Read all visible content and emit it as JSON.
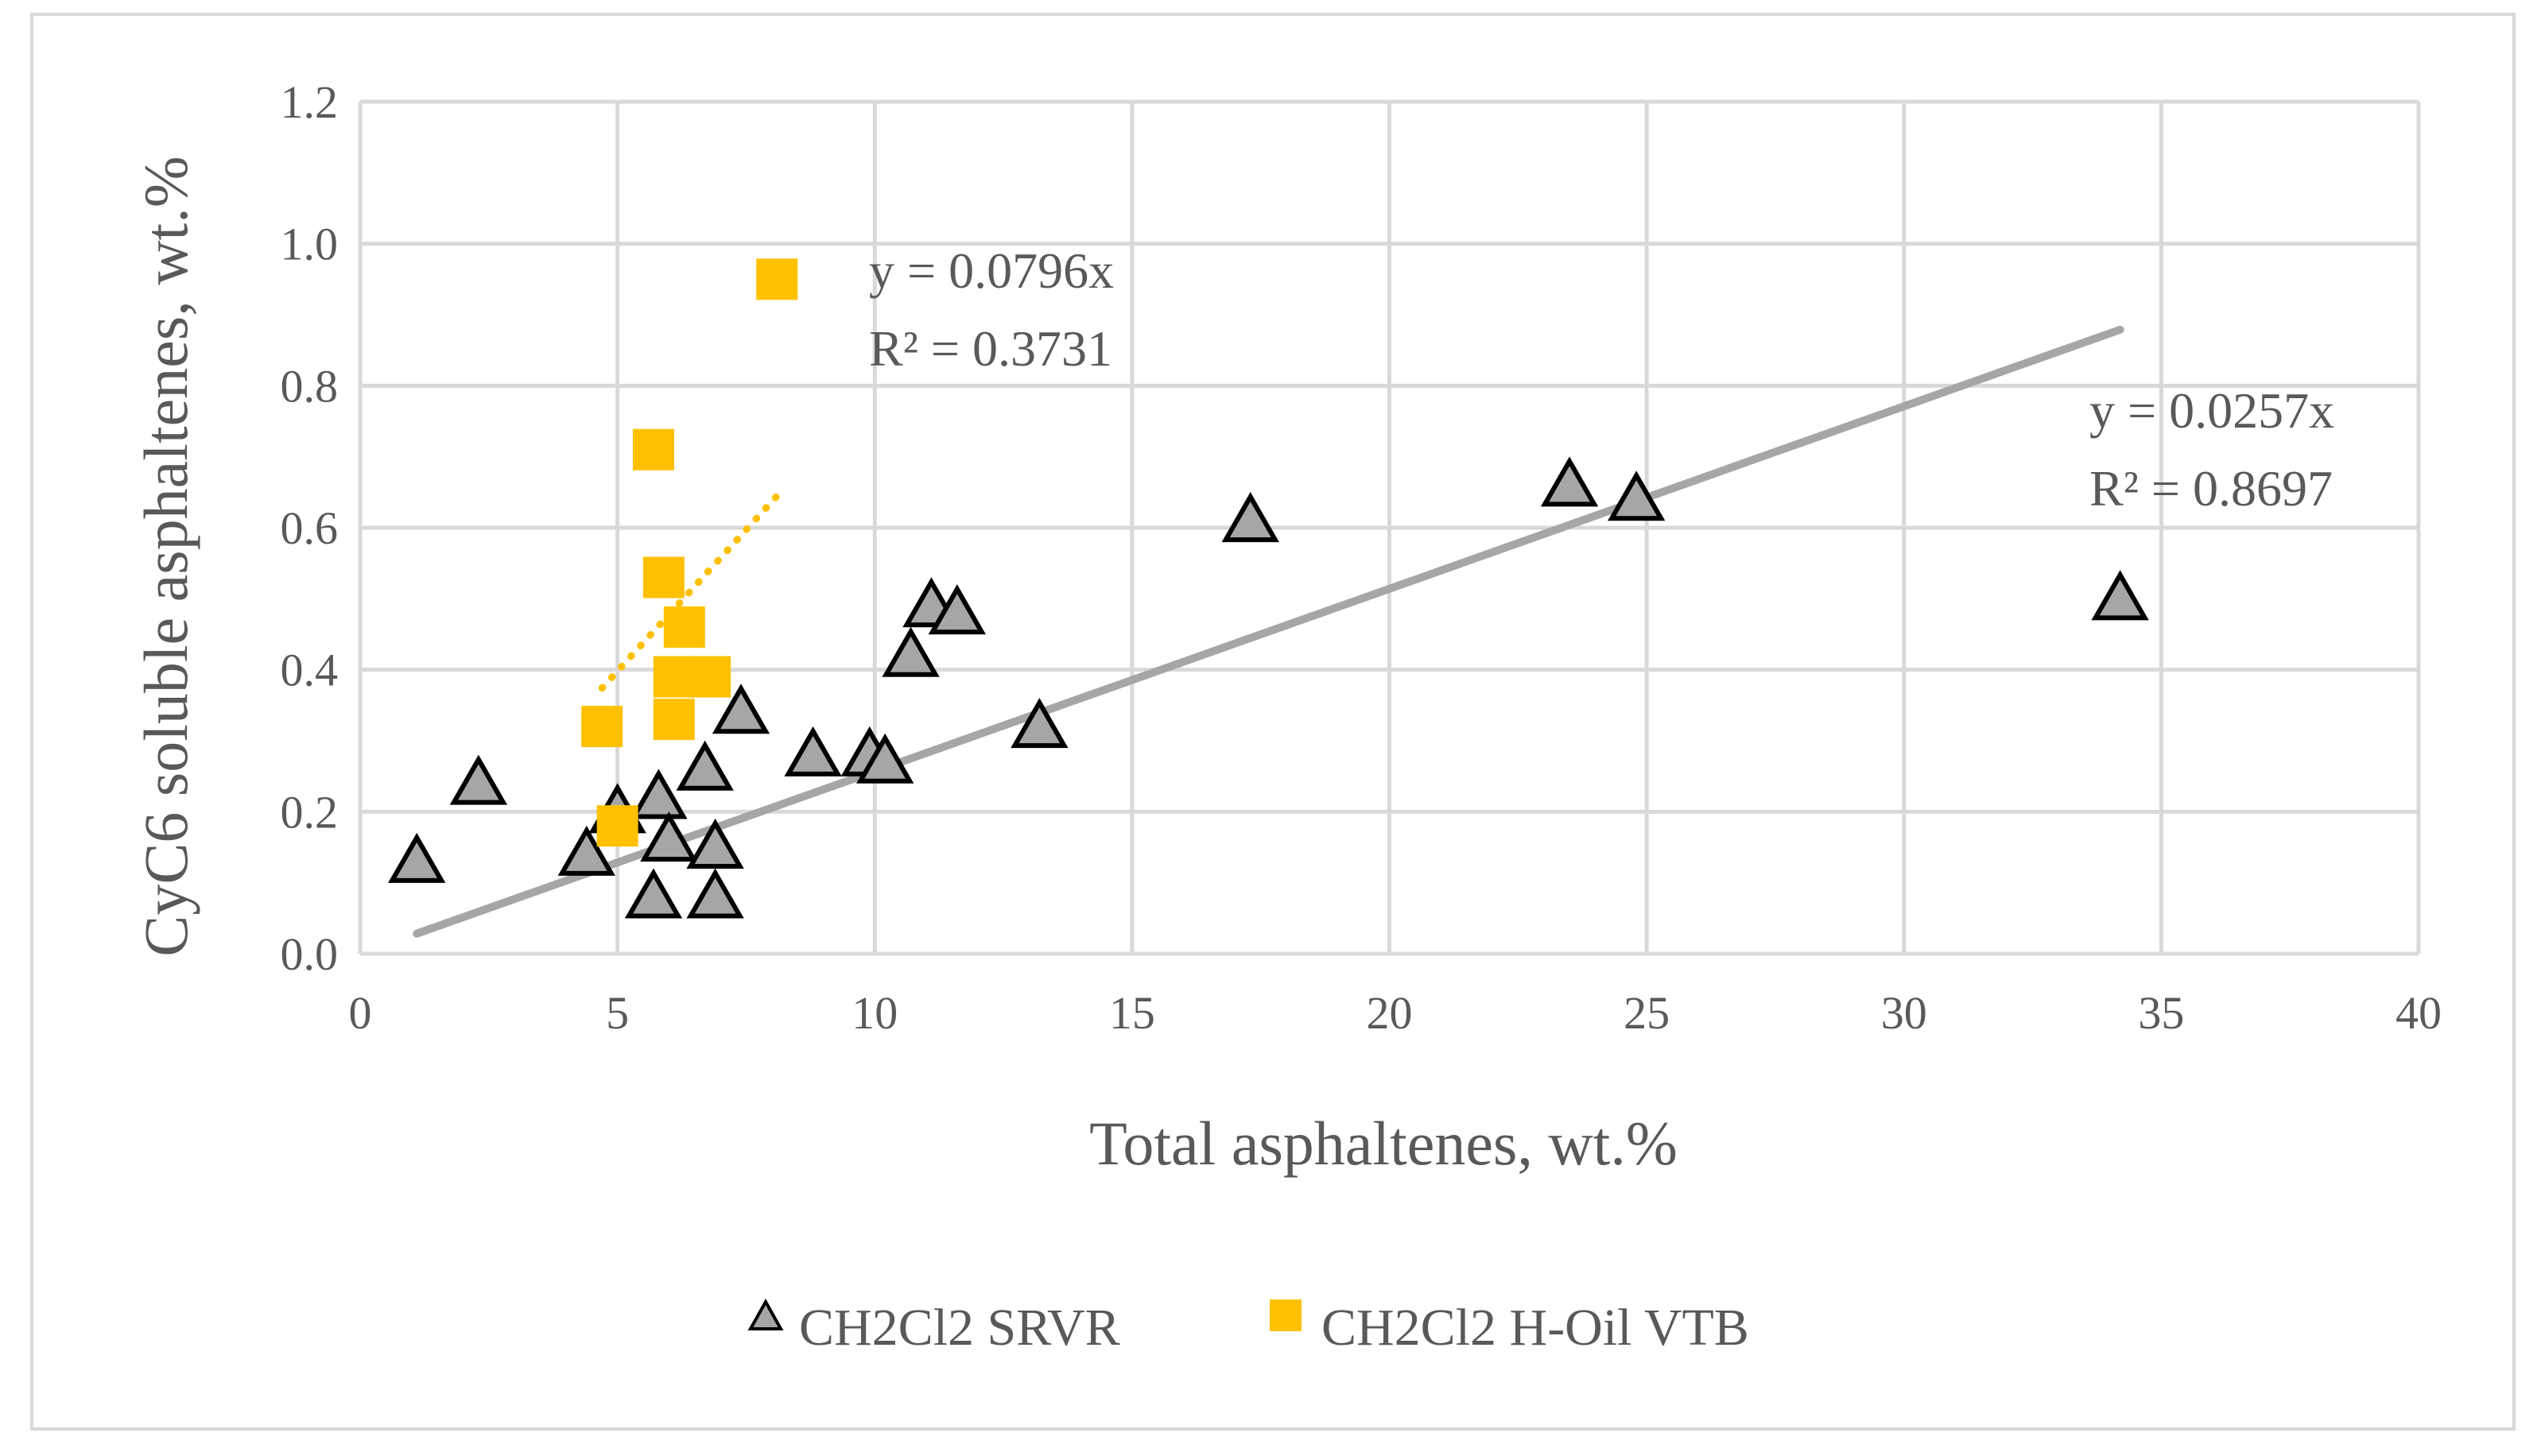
{
  "chart_data": {
    "type": "scatter",
    "title": "",
    "xlabel": "Total asphaltenes, wt.%",
    "ylabel": "CyC6 soluble asphaltenes, wt.%",
    "xlim": [
      0,
      40
    ],
    "ylim": [
      0,
      1.2
    ],
    "x_ticks": [
      "0",
      "5",
      "10",
      "15",
      "20",
      "25",
      "30",
      "35",
      "40"
    ],
    "y_ticks": [
      "0.0",
      "0.2",
      "0.4",
      "0.6",
      "0.8",
      "1.0",
      "1.2"
    ],
    "grid": true,
    "legend_position": "bottom",
    "series": [
      {
        "name": "CH2Cl2 SRVR",
        "marker": "triangle",
        "color": "#a6a6a6",
        "edge_color": "#000000",
        "points": [
          [
            1.1,
            0.13
          ],
          [
            2.3,
            0.24
          ],
          [
            4.4,
            0.14
          ],
          [
            5.0,
            0.2
          ],
          [
            5.7,
            0.08
          ],
          [
            5.8,
            0.22
          ],
          [
            6.0,
            0.16
          ],
          [
            6.7,
            0.26
          ],
          [
            6.9,
            0.15
          ],
          [
            6.9,
            0.08
          ],
          [
            7.4,
            0.34
          ],
          [
            8.8,
            0.28
          ],
          [
            9.9,
            0.28
          ],
          [
            10.2,
            0.27
          ],
          [
            10.7,
            0.42
          ],
          [
            11.1,
            0.49
          ],
          [
            11.6,
            0.48
          ],
          [
            13.2,
            0.32
          ],
          [
            17.3,
            0.61
          ],
          [
            23.5,
            0.66
          ],
          [
            24.8,
            0.64
          ],
          [
            34.2,
            0.5
          ]
        ],
        "trendline": {
          "style": "solid",
          "color": "#a6a6a6",
          "x_range": [
            1.1,
            34.2
          ],
          "slope": 0.0257,
          "equation": "y = 0.0257x",
          "r_squared": "R² = 0.8697"
        }
      },
      {
        "name": "CH2Cl2 H-Oil VTB",
        "marker": "square",
        "color": "#ffc000",
        "points": [
          [
            4.7,
            0.32
          ],
          [
            5.0,
            0.18
          ],
          [
            5.7,
            0.71
          ],
          [
            5.9,
            0.53
          ],
          [
            6.1,
            0.39
          ],
          [
            6.1,
            0.33
          ],
          [
            6.3,
            0.46
          ],
          [
            6.8,
            0.39
          ],
          [
            8.1,
            0.95
          ]
        ],
        "trendline": {
          "style": "dotted",
          "color": "#ffc000",
          "x_range": [
            4.7,
            8.1
          ],
          "slope": 0.0796,
          "equation": "y = 0.0796x",
          "r_squared": "R² = 0.3731"
        }
      }
    ]
  }
}
